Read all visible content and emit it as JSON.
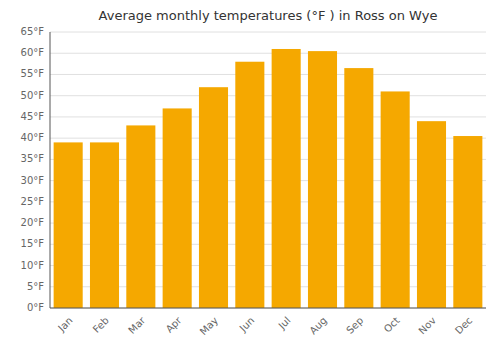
{
  "chart_data": {
    "type": "bar",
    "title": "Average monthly temperatures (°F ) in Ross on Wye",
    "categories": [
      "Jan",
      "Feb",
      "Mar",
      "Apr",
      "May",
      "Jun",
      "Jul",
      "Aug",
      "Sep",
      "Oct",
      "Nov",
      "Dec"
    ],
    "values": [
      39,
      39,
      43,
      47,
      52,
      58,
      61,
      60.5,
      56.5,
      51,
      44,
      40.5
    ],
    "color": "#F5A800",
    "ylim": [
      0,
      65
    ],
    "yticks": [
      {
        "value": 0,
        "label": "0°F"
      },
      {
        "value": 5,
        "label": "5°F"
      },
      {
        "value": 10,
        "label": "10°F"
      },
      {
        "value": 15,
        "label": "15°F"
      },
      {
        "value": 20,
        "label": "20°F"
      },
      {
        "value": 25,
        "label": "25°F"
      },
      {
        "value": 30,
        "label": "30°F"
      },
      {
        "value": 35,
        "label": "35°F"
      },
      {
        "value": 40,
        "label": "40°F"
      },
      {
        "value": 45,
        "label": "45°F"
      },
      {
        "value": 50,
        "label": "50°F"
      },
      {
        "value": 55,
        "label": "55°F"
      },
      {
        "value": 60,
        "label": "60°F"
      },
      {
        "value": 65,
        "label": "65°F"
      }
    ],
    "grid": true
  }
}
